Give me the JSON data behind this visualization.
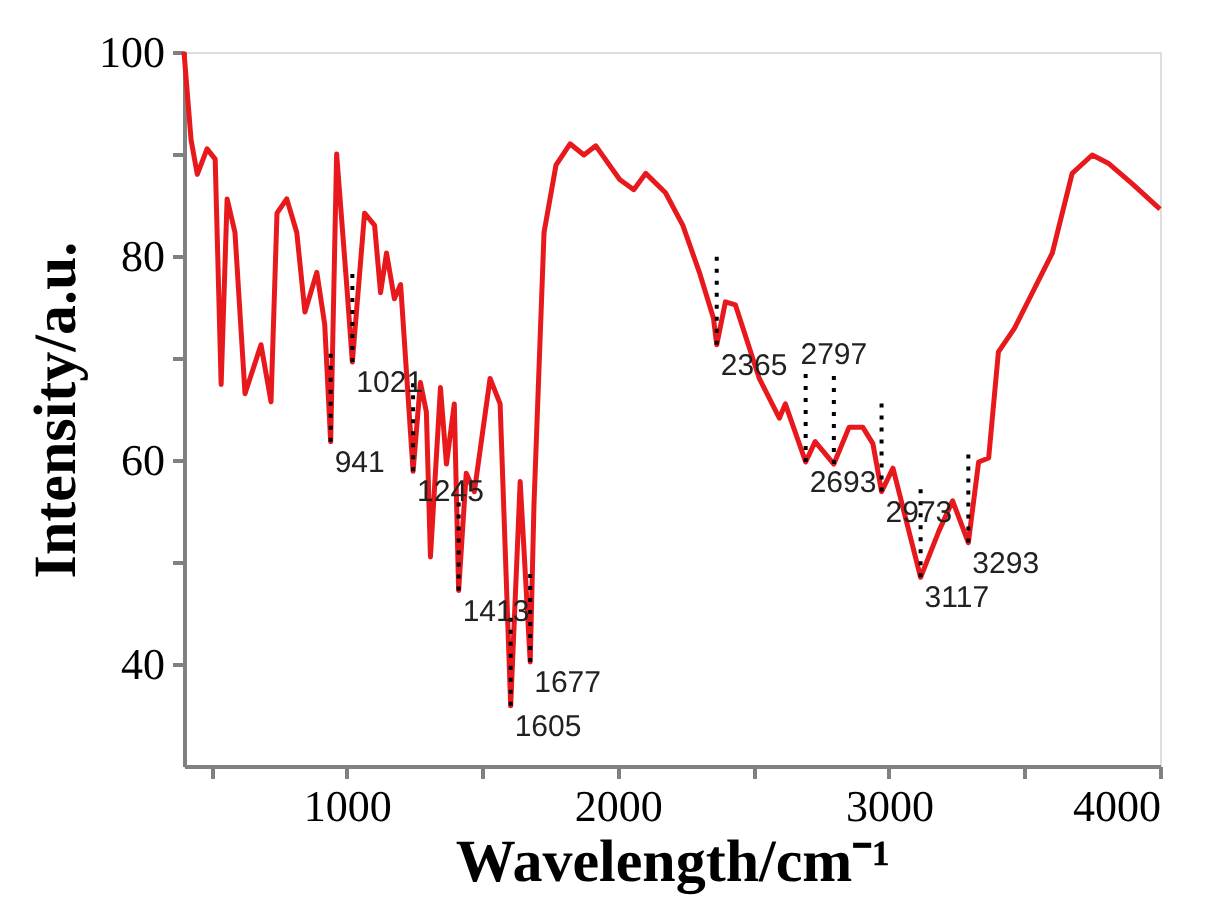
{
  "chart_data": {
    "type": "line",
    "xlabel": "Wavelength/cm⁻¹",
    "ylabel": "Intensity/a.u.",
    "xlim": [
      400,
      4000
    ],
    "ylim": [
      30,
      100
    ],
    "xticks": [
      {
        "value": 500,
        "label": null
      },
      1000,
      {
        "value": 1500,
        "label": null
      },
      2000,
      {
        "value": 2500,
        "label": null
      },
      3000,
      {
        "value": 3500,
        "label": null
      },
      4000
    ],
    "yticks": [
      40,
      {
        "value": 50,
        "label": null
      },
      60,
      {
        "value": 70,
        "label": null
      },
      80,
      {
        "value": 90,
        "label": null
      },
      100
    ],
    "grid": false,
    "marker": "none",
    "line_style": "solid",
    "x": [
      400,
      426,
      449,
      485,
      515,
      537,
      559,
      588,
      625,
      684,
      721,
      743,
      779,
      816,
      846,
      890,
      919,
      941,
      963,
      1000,
      1021,
      1066,
      1103,
      1125,
      1147,
      1176,
      1199,
      1245,
      1272,
      1294,
      1309,
      1346,
      1368,
      1397,
      1413,
      1441,
      1471,
      1529,
      1566,
      1605,
      1640,
      1677,
      1691,
      1728,
      1772,
      1824,
      1875,
      1919,
      2007,
      2059,
      2103,
      2176,
      2240,
      2301,
      2353,
      2365,
      2397,
      2434,
      2522,
      2596,
      2618,
      2693,
      2728,
      2797,
      2853,
      2904,
      2941,
      2973,
      3015,
      3117,
      3184,
      3235,
      3293,
      3331,
      3368,
      3404,
      3463,
      3603,
      3676,
      3750,
      3809,
      3897,
      4000
    ],
    "series": [
      {
        "color": "#e8191c",
        "values": [
          100,
          91.4,
          88,
          90.5,
          89.5,
          67.4,
          85.6,
          82.3,
          66.5,
          71.3,
          65.7,
          84.2,
          85.6,
          82.3,
          74.5,
          78.4,
          73.3,
          61.8,
          90,
          77.2,
          69.6,
          84.2,
          83,
          76.4,
          80.3,
          75.8,
          77.2,
          58.9,
          67.6,
          64.7,
          50.5,
          67.1,
          59.6,
          65.5,
          47.2,
          58.7,
          56.9,
          68,
          65.5,
          35.9,
          57.9,
          40.2,
          55.7,
          82.3,
          88.9,
          91,
          89.9,
          90.8,
          87.5,
          86.5,
          88.1,
          86.2,
          83,
          78.4,
          73.9,
          71.3,
          75.5,
          75.2,
          68,
          64.1,
          65.5,
          59.8,
          61.8,
          59.6,
          63.2,
          63.2,
          61.6,
          56.9,
          59.2,
          48.5,
          53,
          56,
          51.9,
          59.8,
          60.2,
          70.6,
          72.9,
          80.3,
          88.1,
          89.9,
          89.1,
          87.1,
          84.6
        ]
      }
    ],
    "annotations": [
      {
        "text": "941",
        "x": 941,
        "y": 61.8
      },
      {
        "text": "1021",
        "x": 1021,
        "y": 69.6
      },
      {
        "text": "1245",
        "x": 1245,
        "y": 58.9
      },
      {
        "text": "1413",
        "x": 1413,
        "y": 47.2
      },
      {
        "text": "1605",
        "x": 1605,
        "y": 35.9
      },
      {
        "text": "1677",
        "x": 1677,
        "y": 40.2
      },
      {
        "text": "2365",
        "x": 2365,
        "y": 71.3
      },
      {
        "text": "2693",
        "x": 2693,
        "y": 59.8
      },
      {
        "text": "2797",
        "x": 2797,
        "y": 59.6
      },
      {
        "text": "2973",
        "x": 2973,
        "y": 56.9
      },
      {
        "text": "3117",
        "x": 3117,
        "y": 48.5
      },
      {
        "text": "3293",
        "x": 3293,
        "y": 51.9
      }
    ]
  }
}
